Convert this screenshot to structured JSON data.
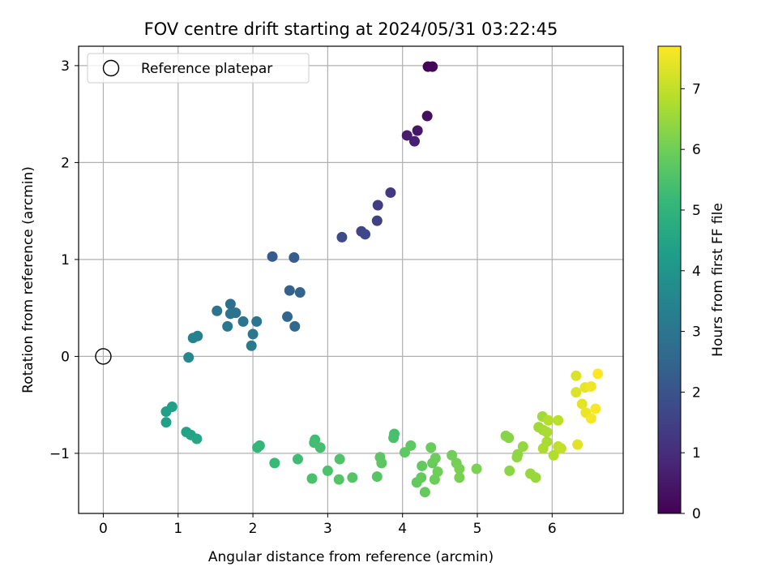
{
  "chart_data": {
    "type": "scatter",
    "title": "FOV centre drift starting at 2024/05/31 03:22:45",
    "xlabel": "Angular distance from reference (arcmin)",
    "ylabel": "Rotation from reference (arcmin)",
    "xlim": [
      -0.33,
      6.95
    ],
    "ylim": [
      -1.62,
      3.2
    ],
    "xticks": [
      0,
      1,
      2,
      3,
      4,
      5,
      6
    ],
    "yticks": [
      -1,
      0,
      1,
      2,
      3
    ],
    "grid": true,
    "legend": {
      "placement": "upper-left",
      "entries": [
        "Reference platepar"
      ]
    },
    "colorbar": {
      "label": "Hours from first FF file",
      "range": [
        0,
        7.7
      ],
      "ticks": [
        0,
        1,
        2,
        3,
        4,
        5,
        6,
        7
      ],
      "colormap": [
        "#440154",
        "#482878",
        "#3e4989",
        "#31688e",
        "#26828e",
        "#1f9e89",
        "#35b779",
        "#6ece58",
        "#b5de2b",
        "#fde725"
      ]
    },
    "reference_point": {
      "x": 0,
      "y": 0,
      "label": "Reference platepar"
    },
    "series": [
      {
        "points": [
          {
            "x": 4.34,
            "y": 2.99,
            "t": 0.05
          },
          {
            "x": 4.4,
            "y": 2.99,
            "t": 0.1
          },
          {
            "x": 4.33,
            "y": 2.48,
            "t": 0.3
          },
          {
            "x": 4.2,
            "y": 2.33,
            "t": 0.5
          },
          {
            "x": 4.06,
            "y": 2.28,
            "t": 0.6
          },
          {
            "x": 4.16,
            "y": 2.22,
            "t": 0.7
          },
          {
            "x": 3.84,
            "y": 1.69,
            "t": 1.3
          },
          {
            "x": 3.67,
            "y": 1.56,
            "t": 1.4
          },
          {
            "x": 3.66,
            "y": 1.4,
            "t": 1.5
          },
          {
            "x": 3.45,
            "y": 1.29,
            "t": 1.6
          },
          {
            "x": 3.5,
            "y": 1.26,
            "t": 1.7
          },
          {
            "x": 3.19,
            "y": 1.23,
            "t": 1.75
          },
          {
            "x": 2.26,
            "y": 1.03,
            "t": 2.2
          },
          {
            "x": 2.55,
            "y": 1.02,
            "t": 2.25
          },
          {
            "x": 2.49,
            "y": 0.68,
            "t": 2.4
          },
          {
            "x": 2.63,
            "y": 0.66,
            "t": 2.45
          },
          {
            "x": 2.46,
            "y": 0.41,
            "t": 2.55
          },
          {
            "x": 2.56,
            "y": 0.31,
            "t": 2.6
          },
          {
            "x": 1.7,
            "y": 0.54,
            "t": 2.8
          },
          {
            "x": 1.52,
            "y": 0.47,
            "t": 2.9
          },
          {
            "x": 1.77,
            "y": 0.45,
            "t": 2.9
          },
          {
            "x": 1.7,
            "y": 0.44,
            "t": 2.95
          },
          {
            "x": 1.87,
            "y": 0.36,
            "t": 3.0
          },
          {
            "x": 2.05,
            "y": 0.36,
            "t": 3.0
          },
          {
            "x": 1.66,
            "y": 0.31,
            "t": 3.05
          },
          {
            "x": 2.0,
            "y": 0.23,
            "t": 3.1
          },
          {
            "x": 1.98,
            "y": 0.11,
            "t": 3.15
          },
          {
            "x": 1.26,
            "y": 0.21,
            "t": 3.4
          },
          {
            "x": 1.2,
            "y": 0.19,
            "t": 3.45
          },
          {
            "x": 1.14,
            "y": -0.01,
            "t": 3.6
          },
          {
            "x": 0.84,
            "y": -0.57,
            "t": 4.3
          },
          {
            "x": 0.92,
            "y": -0.52,
            "t": 4.3
          },
          {
            "x": 0.84,
            "y": -0.68,
            "t": 4.35
          },
          {
            "x": 1.11,
            "y": -0.78,
            "t": 4.45
          },
          {
            "x": 1.17,
            "y": -0.81,
            "t": 4.5
          },
          {
            "x": 1.25,
            "y": -0.85,
            "t": 4.55
          },
          {
            "x": 2.06,
            "y": -0.94,
            "t": 5.1
          },
          {
            "x": 2.09,
            "y": -0.92,
            "t": 5.1
          },
          {
            "x": 2.29,
            "y": -1.1,
            "t": 5.2
          },
          {
            "x": 2.6,
            "y": -1.06,
            "t": 5.3
          },
          {
            "x": 2.83,
            "y": -0.86,
            "t": 5.3
          },
          {
            "x": 2.82,
            "y": -0.89,
            "t": 5.35
          },
          {
            "x": 2.9,
            "y": -0.94,
            "t": 5.4
          },
          {
            "x": 2.79,
            "y": -1.26,
            "t": 5.45
          },
          {
            "x": 3.0,
            "y": -1.18,
            "t": 5.5
          },
          {
            "x": 3.16,
            "y": -1.06,
            "t": 5.55
          },
          {
            "x": 3.15,
            "y": -1.27,
            "t": 5.6
          },
          {
            "x": 3.33,
            "y": -1.25,
            "t": 5.6
          },
          {
            "x": 3.66,
            "y": -1.24,
            "t": 5.65
          },
          {
            "x": 3.7,
            "y": -1.04,
            "t": 5.7
          },
          {
            "x": 3.72,
            "y": -1.1,
            "t": 5.7
          },
          {
            "x": 3.89,
            "y": -0.8,
            "t": 5.4
          },
          {
            "x": 3.88,
            "y": -0.84,
            "t": 5.45
          },
          {
            "x": 4.03,
            "y": -0.99,
            "t": 5.75
          },
          {
            "x": 4.11,
            "y": -0.92,
            "t": 5.75
          },
          {
            "x": 4.19,
            "y": -1.3,
            "t": 5.8
          },
          {
            "x": 4.26,
            "y": -1.13,
            "t": 5.8
          },
          {
            "x": 4.25,
            "y": -1.25,
            "t": 5.85
          },
          {
            "x": 4.3,
            "y": -1.4,
            "t": 5.85
          },
          {
            "x": 4.38,
            "y": -0.94,
            "t": 5.9
          },
          {
            "x": 4.4,
            "y": -1.1,
            "t": 5.9
          },
          {
            "x": 4.44,
            "y": -1.05,
            "t": 5.95
          },
          {
            "x": 4.43,
            "y": -1.27,
            "t": 5.95
          },
          {
            "x": 4.47,
            "y": -1.19,
            "t": 6.0
          },
          {
            "x": 4.66,
            "y": -1.02,
            "t": 6.0
          },
          {
            "x": 4.72,
            "y": -1.1,
            "t": 6.05
          },
          {
            "x": 4.76,
            "y": -1.16,
            "t": 6.1
          },
          {
            "x": 4.76,
            "y": -1.25,
            "t": 6.1
          },
          {
            "x": 4.99,
            "y": -1.16,
            "t": 6.15
          },
          {
            "x": 5.38,
            "y": -0.82,
            "t": 6.3
          },
          {
            "x": 5.42,
            "y": -0.84,
            "t": 6.3
          },
          {
            "x": 5.43,
            "y": -1.18,
            "t": 6.35
          },
          {
            "x": 5.54,
            "y": -1.01,
            "t": 6.4
          },
          {
            "x": 5.53,
            "y": -1.04,
            "t": 6.4
          },
          {
            "x": 5.61,
            "y": -0.93,
            "t": 6.45
          },
          {
            "x": 5.71,
            "y": -1.21,
            "t": 6.5
          },
          {
            "x": 5.78,
            "y": -1.25,
            "t": 6.5
          },
          {
            "x": 5.82,
            "y": -0.73,
            "t": 6.6
          },
          {
            "x": 5.87,
            "y": -0.62,
            "t": 6.6
          },
          {
            "x": 5.88,
            "y": -0.76,
            "t": 6.65
          },
          {
            "x": 5.93,
            "y": -0.78,
            "t": 6.7
          },
          {
            "x": 5.93,
            "y": -0.88,
            "t": 6.7
          },
          {
            "x": 5.88,
            "y": -0.95,
            "t": 6.75
          },
          {
            "x": 6.02,
            "y": -1.02,
            "t": 6.8
          },
          {
            "x": 5.95,
            "y": -0.66,
            "t": 6.85
          },
          {
            "x": 6.08,
            "y": -0.66,
            "t": 6.9
          },
          {
            "x": 6.08,
            "y": -0.93,
            "t": 6.95
          },
          {
            "x": 6.12,
            "y": -0.95,
            "t": 7.0
          },
          {
            "x": 6.32,
            "y": -0.2,
            "t": 7.3
          },
          {
            "x": 6.32,
            "y": -0.37,
            "t": 7.3
          },
          {
            "x": 6.34,
            "y": -0.91,
            "t": 7.35
          },
          {
            "x": 6.4,
            "y": -0.49,
            "t": 7.4
          },
          {
            "x": 6.44,
            "y": -0.32,
            "t": 7.45
          },
          {
            "x": 6.45,
            "y": -0.58,
            "t": 7.5
          },
          {
            "x": 6.52,
            "y": -0.31,
            "t": 7.55
          },
          {
            "x": 6.52,
            "y": -0.64,
            "t": 7.6
          },
          {
            "x": 6.58,
            "y": -0.54,
            "t": 7.65
          },
          {
            "x": 6.61,
            "y": -0.18,
            "t": 7.7
          }
        ]
      }
    ]
  }
}
